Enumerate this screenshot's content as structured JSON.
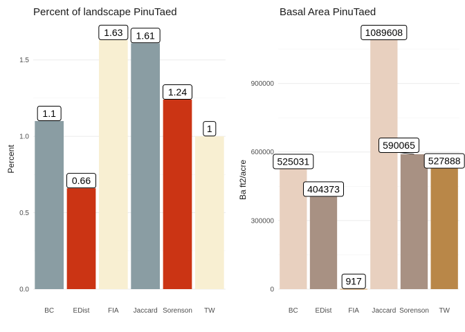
{
  "chart_data": [
    {
      "type": "bar",
      "title": "Percent of landscape  PinuTaed",
      "xlabel": "",
      "ylabel": "Percent",
      "categories": [
        "BC",
        "EDist",
        "FIA",
        "Jaccard",
        "Sorenson",
        "TW"
      ],
      "values": [
        1.1,
        0.66,
        1.63,
        1.61,
        1.24,
        1
      ],
      "data_labels": [
        "1.1",
        "0.66",
        "1.63",
        "1.61",
        "1.24",
        "1"
      ],
      "bar_colors": [
        "#8a9da3",
        "#cb3414",
        "#f8efd2",
        "#8a9da3",
        "#cb3414",
        "#f8efd2"
      ],
      "ylim": [
        0,
        1.72
      ],
      "yticks": [
        0,
        0.5,
        1,
        1.5
      ],
      "ytick_labels": [
        "0.0",
        "0.5",
        "1.0",
        "1.5"
      ],
      "grid": true,
      "legend": "none"
    },
    {
      "type": "bar",
      "title": "Basal Area  PinuTaed",
      "xlabel": "",
      "ylabel": "Ba ft2/acre",
      "categories": [
        "BC",
        "EDist",
        "FIA",
        "Jaccard",
        "Sorenson",
        "TW"
      ],
      "values": [
        525031,
        404373,
        917,
        1089608,
        590065,
        527888
      ],
      "data_labels": [
        "525031",
        "404373",
        "917",
        "1089608",
        "590065",
        "527888"
      ],
      "bar_colors": [
        "#e8d0bf",
        "#a89183",
        "#c8832e",
        "#e8d0bf",
        "#a89183",
        "#b98748"
      ],
      "ylim": [
        0,
        1150000
      ],
      "yticks": [
        0,
        300000,
        600000,
        900000
      ],
      "ytick_labels": [
        "0",
        "300000",
        "600000",
        "900000"
      ],
      "grid": true,
      "legend": "none"
    }
  ]
}
